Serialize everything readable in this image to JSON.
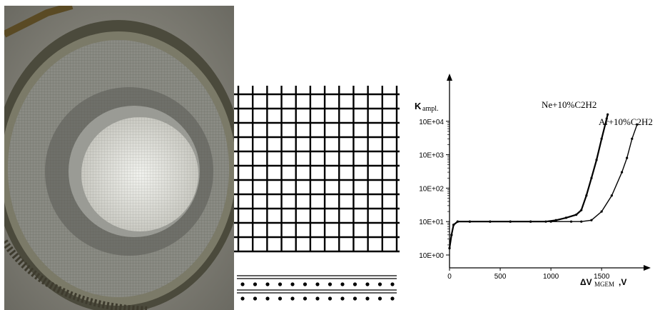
{
  "figure": {
    "photo_label": "",
    "mesh_label": ""
  },
  "chart_data": {
    "type": "line",
    "ylabel": "K",
    "ylabel_sub": "ampl.",
    "xlabel_prefix": "ΔV",
    "xlabel_sub": "MGEM",
    "xlabel_suffix": ",V",
    "y_scale": "log",
    "ylim": [
      1,
      100000
    ],
    "xlim": [
      0,
      1900
    ],
    "y_ticks": [
      "10E+00",
      "10E+01",
      "10E+02",
      "10E+03",
      "10E+04"
    ],
    "x_ticks": [
      "0",
      "500",
      "1000",
      "1500"
    ],
    "grid": false,
    "series": [
      {
        "name": "Ne+10%C2H2",
        "points": [
          [
            0,
            1.6
          ],
          [
            20,
            4
          ],
          [
            40,
            8
          ],
          [
            80,
            10
          ],
          [
            200,
            10
          ],
          [
            400,
            10
          ],
          [
            600,
            10
          ],
          [
            800,
            10
          ],
          [
            950,
            10
          ],
          [
            1050,
            11
          ],
          [
            1150,
            13
          ],
          [
            1250,
            16
          ],
          [
            1300,
            22
          ],
          [
            1350,
            60
          ],
          [
            1400,
            200
          ],
          [
            1450,
            700
          ],
          [
            1500,
            3000
          ],
          [
            1550,
            12000
          ],
          [
            1560,
            16000
          ]
        ]
      },
      {
        "name": "Ar+10%C2H2",
        "points": [
          [
            0,
            1.6
          ],
          [
            20,
            4
          ],
          [
            40,
            8
          ],
          [
            80,
            10
          ],
          [
            200,
            10
          ],
          [
            400,
            10
          ],
          [
            600,
            10
          ],
          [
            800,
            10
          ],
          [
            1000,
            10
          ],
          [
            1200,
            10
          ],
          [
            1300,
            10
          ],
          [
            1400,
            11
          ],
          [
            1500,
            20
          ],
          [
            1600,
            60
          ],
          [
            1700,
            300
          ],
          [
            1750,
            800
          ],
          [
            1800,
            3000
          ],
          [
            1850,
            8000
          ]
        ]
      }
    ]
  }
}
